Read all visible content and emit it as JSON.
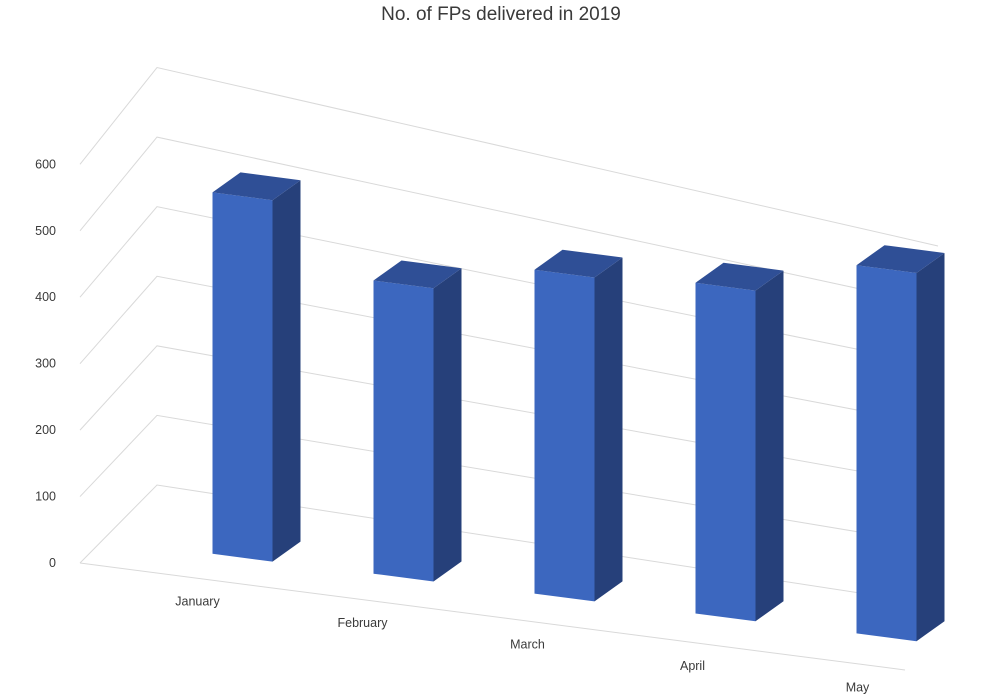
{
  "chart_data": {
    "type": "bar",
    "title": "No. of FPs delivered in 2019",
    "categories": [
      "January",
      "February",
      "March",
      "April",
      "May"
    ],
    "values": [
      530,
      430,
      475,
      485,
      540
    ],
    "ylim": [
      0,
      600
    ],
    "yticks": [
      "0",
      "100",
      "200",
      "300",
      "400",
      "500",
      "600"
    ],
    "grid": true,
    "legend": "none",
    "style": "3d-column",
    "colors": {
      "front": "#3C67BF",
      "side": "#26407A",
      "top": "#2F4F96",
      "grid": "#D9D9D9",
      "text": "#3A3A3A"
    }
  }
}
